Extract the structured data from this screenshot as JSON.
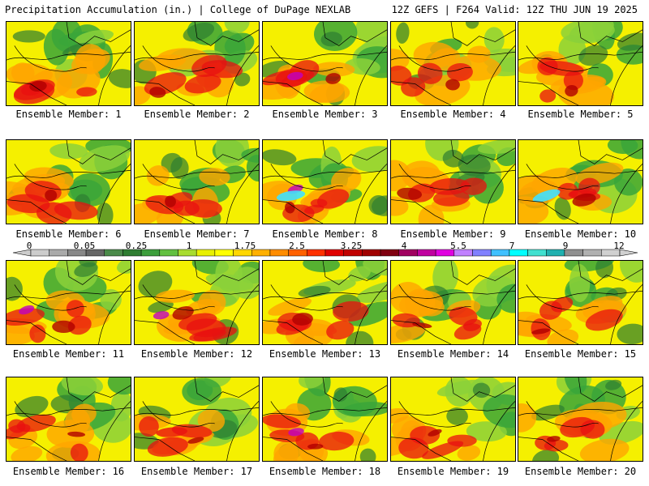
{
  "header": {
    "left_title": "Precipitation Accumulation (in.) | College of DuPage NEXLAB",
    "right_title": "12Z GEFS | F264 Valid: 12Z THU JUN 19 2025"
  },
  "members": [
    {
      "label": "Ensemble Member: 1"
    },
    {
      "label": "Ensemble Member: 2"
    },
    {
      "label": "Ensemble Member: 3"
    },
    {
      "label": "Ensemble Member: 4"
    },
    {
      "label": "Ensemble Member: 5"
    },
    {
      "label": "Ensemble Member: 6"
    },
    {
      "label": "Ensemble Member: 7"
    },
    {
      "label": "Ensemble Member: 8"
    },
    {
      "label": "Ensemble Member: 9"
    },
    {
      "label": "Ensemble Member: 10"
    },
    {
      "label": "Ensemble Member: 11"
    },
    {
      "label": "Ensemble Member: 12"
    },
    {
      "label": "Ensemble Member: 13"
    },
    {
      "label": "Ensemble Member: 14"
    },
    {
      "label": "Ensemble Member: 15"
    },
    {
      "label": "Ensemble Member: 16"
    },
    {
      "label": "Ensemble Member: 17"
    },
    {
      "label": "Ensemble Member: 18"
    },
    {
      "label": "Ensemble Member: 19"
    },
    {
      "label": "Ensemble Member: 20"
    }
  ],
  "colorbar": {
    "labels": [
      "0",
      "0.05",
      "0.25",
      "1",
      "1.75",
      "2.5",
      "3.25",
      "4",
      "5.5",
      "7",
      "9",
      "12"
    ],
    "colors": [
      "#cccccc",
      "#aaaaaa",
      "#888888",
      "#666666",
      "#4a8a4a",
      "#2e7d32",
      "#3c9e3c",
      "#62c040",
      "#a8dc30",
      "#e8f000",
      "#ffff00",
      "#ffd700",
      "#ffb000",
      "#ff8c00",
      "#ff6000",
      "#ff3000",
      "#e00000",
      "#c00000",
      "#a00000",
      "#800010",
      "#a00060",
      "#c000a0",
      "#e000e0",
      "#c080ff",
      "#8080ff",
      "#40c0ff",
      "#00ffff",
      "#40e0d0",
      "#20b0b0",
      "#909090",
      "#b0b0b0",
      "#d0d0d0"
    ]
  }
}
